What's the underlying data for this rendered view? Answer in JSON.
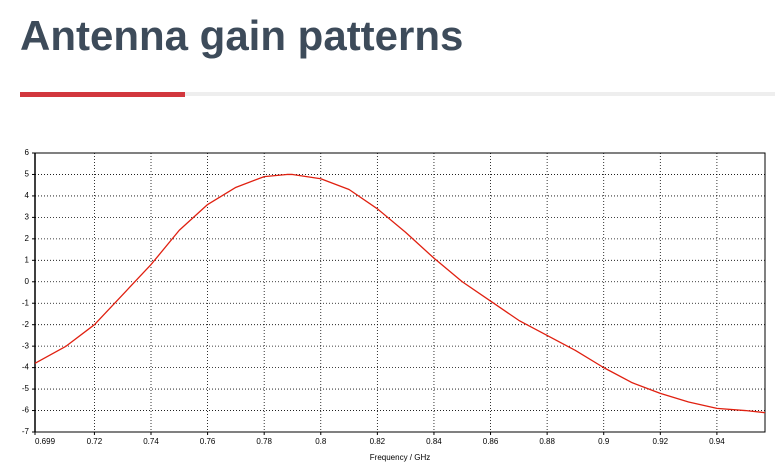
{
  "header": {
    "title": "Antenna gain patterns"
  },
  "chart_data": {
    "type": "line",
    "x_label": "Frequency / GHz",
    "x": [
      0.699,
      0.71,
      0.72,
      0.73,
      0.74,
      0.75,
      0.76,
      0.77,
      0.78,
      0.788,
      0.79,
      0.8,
      0.81,
      0.82,
      0.83,
      0.84,
      0.85,
      0.86,
      0.87,
      0.88,
      0.89,
      0.9,
      0.91,
      0.92,
      0.93,
      0.94,
      0.95,
      0.957
    ],
    "values": [
      -3.8,
      -3.0,
      -2.0,
      -0.6,
      0.8,
      2.4,
      3.6,
      4.4,
      4.9,
      5.0,
      5.0,
      4.8,
      4.3,
      3.4,
      2.3,
      1.1,
      0.0,
      -0.9,
      -1.8,
      -2.5,
      -3.2,
      -4.0,
      -4.7,
      -5.2,
      -5.6,
      -5.9,
      -6.0,
      -6.1
    ],
    "color": "#e02010",
    "xlim": [
      0.699,
      0.957
    ],
    "xticks": [
      0.699,
      0.72,
      0.74,
      0.76,
      0.78,
      0.8,
      0.82,
      0.84,
      0.86,
      0.88,
      0.9,
      0.92,
      0.94
    ],
    "ylim": [
      -7,
      6
    ],
    "yticks": [
      -7,
      -6,
      -5,
      -4,
      -3,
      -2,
      -1,
      0,
      1,
      2,
      3,
      4,
      5,
      6
    ],
    "grid": true
  }
}
